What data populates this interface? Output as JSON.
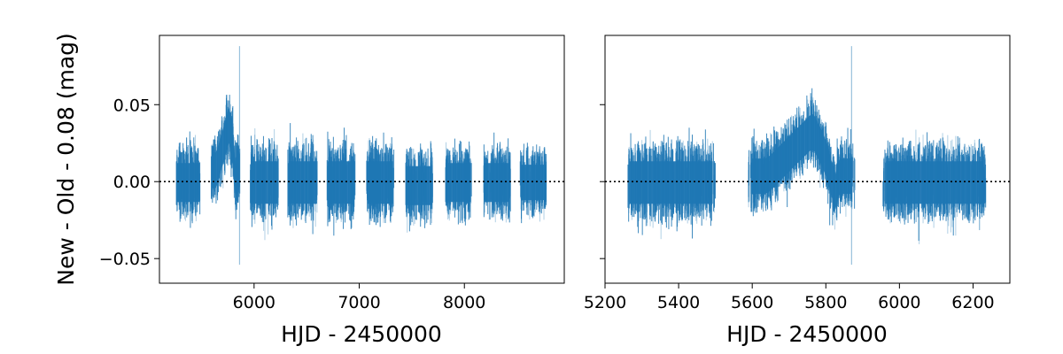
{
  "chart_data": [
    {
      "type": "scatter",
      "description_of_marks": "errorbars",
      "xlabel": "HJD - 2450000",
      "ylabel": "New - Old - 0.08 (mag)",
      "xlim": [
        5100,
        8950
      ],
      "ylim": [
        -0.066,
        0.095
      ],
      "xticks": [
        6000,
        7000,
        8000
      ],
      "yticks": [
        -0.05,
        0.0,
        0.05
      ],
      "xtick_labels": [
        "6000",
        "7000",
        "8000"
      ],
      "ytick_labels": [
        "−0.05",
        "0.00",
        "0.05"
      ],
      "reference_line": {
        "y": 0.0,
        "style": "dotted",
        "color": "#000000"
      },
      "color": "#1f77b4",
      "seasons": [
        {
          "x": [
            5260,
            5490
          ],
          "center": 0.0,
          "spread": 0.022,
          "tail": 0.01
        },
        {
          "x": [
            5590,
            5870
          ],
          "center": 0.008,
          "spread": 0.02,
          "tail": 0.008
        },
        {
          "x": [
            5960,
            6230
          ],
          "center": 0.0,
          "spread": 0.024,
          "tail": 0.012
        },
        {
          "x": [
            6320,
            6600
          ],
          "center": 0.0,
          "spread": 0.024,
          "tail": 0.01
        },
        {
          "x": [
            6690,
            6960
          ],
          "center": 0.0,
          "spread": 0.024,
          "tail": 0.01
        },
        {
          "x": [
            7070,
            7330
          ],
          "center": 0.0,
          "spread": 0.024,
          "tail": 0.01
        },
        {
          "x": [
            7440,
            7700
          ],
          "center": -0.002,
          "spread": 0.022,
          "tail": 0.01
        },
        {
          "x": [
            7820,
            8070
          ],
          "center": 0.0,
          "spread": 0.022,
          "tail": 0.008
        },
        {
          "x": [
            8180,
            8440
          ],
          "center": 0.0,
          "spread": 0.022,
          "tail": 0.008
        },
        {
          "x": [
            8530,
            8780
          ],
          "center": 0.0,
          "spread": 0.02,
          "tail": 0.008
        }
      ],
      "outliers": [
        {
          "x": 5862,
          "y": [
            -0.054,
            0.088
          ]
        }
      ]
    },
    {
      "type": "scatter",
      "description_of_marks": "errorbars",
      "xlabel": "HJD - 2450000",
      "ylabel": "",
      "xlim": [
        5200,
        6300
      ],
      "ylim": [
        -0.066,
        0.095
      ],
      "shared_y_with_left": true,
      "xticks": [
        5200,
        5400,
        5600,
        5800,
        6000,
        6200
      ],
      "xtick_labels": [
        "5200",
        "5400",
        "5600",
        "5800",
        "6000",
        "6200"
      ],
      "reference_line": {
        "y": 0.0,
        "style": "dotted",
        "color": "#000000"
      },
      "color": "#1f77b4",
      "seasons": [
        {
          "x": [
            5260,
            5500
          ],
          "center": 0.0,
          "spread": 0.024,
          "tail": 0.012
        },
        {
          "x": [
            5590,
            5880
          ],
          "center": 0.004,
          "spread": 0.02,
          "tail": 0.01
        },
        {
          "x": [
            5955,
            6235
          ],
          "center": 0.0,
          "spread": 0.024,
          "tail": 0.012
        }
      ],
      "outliers": [
        {
          "x": 5870,
          "y": [
            -0.054,
            0.088
          ]
        }
      ]
    }
  ]
}
